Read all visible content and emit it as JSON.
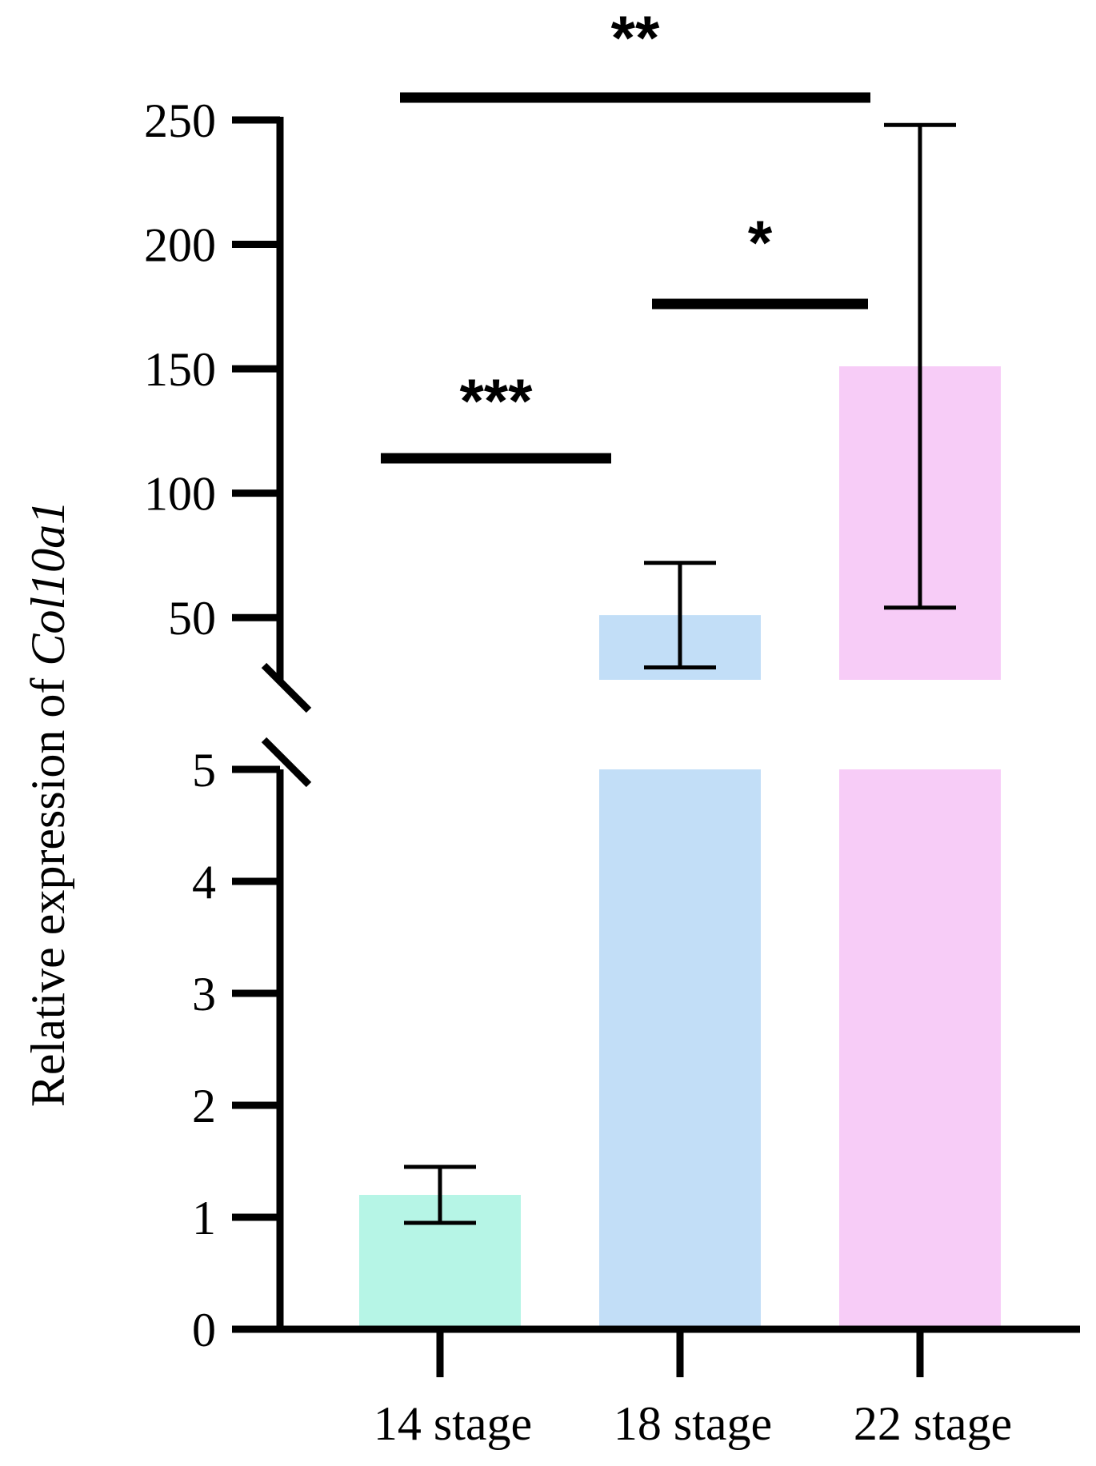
{
  "chart_data": {
    "type": "bar",
    "categories": [
      "14 stage",
      "18 stage",
      "22 stage"
    ],
    "values": [
      1.2,
      51,
      151
    ],
    "error_bars": [
      {
        "low": 0.95,
        "high": 1.45
      },
      {
        "low": 30,
        "high": 72
      },
      {
        "low": 54,
        "high": 248
      }
    ],
    "colors": [
      "#b6f5e6",
      "#c2def7",
      "#f7ccf7"
    ],
    "ylabel_prefix": "Relative expression of ",
    "ylabel_gene": "Col10a1",
    "y_axis_break": true,
    "lower_segment": {
      "range": [
        0,
        5
      ],
      "ticks": [
        0,
        1,
        2,
        3,
        4,
        5
      ]
    },
    "upper_segment": {
      "range": [
        25,
        250
      ],
      "ticks": [
        50,
        100,
        150,
        200,
        250
      ]
    },
    "tick_labels_lower": [
      "0",
      "1",
      "2",
      "3",
      "4",
      "5"
    ],
    "tick_labels_upper": [
      "50",
      "100",
      "150",
      "200",
      "250"
    ],
    "significance": [
      {
        "from": 0,
        "to": 1,
        "label": "***"
      },
      {
        "from": 1,
        "to": 2,
        "label": "*"
      },
      {
        "from": 0,
        "to": 2,
        "label": "**"
      }
    ],
    "grid": false
  }
}
